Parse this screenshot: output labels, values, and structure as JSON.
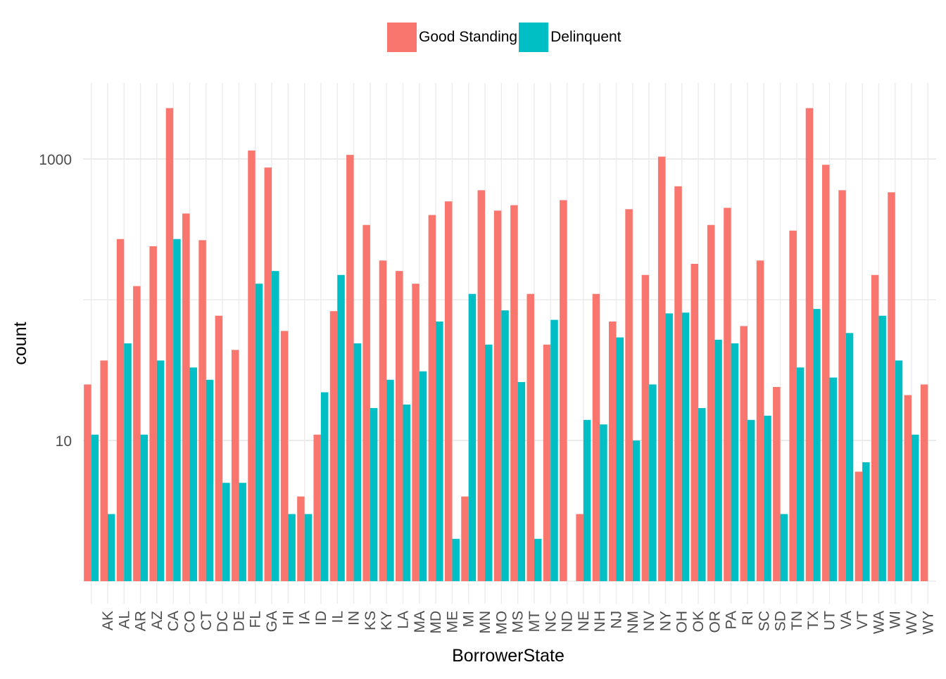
{
  "chart_data": {
    "type": "bar",
    "xlabel": "BorrowerState",
    "ylabel": "count",
    "yscale": "log10",
    "ylim": [
      1,
      3000
    ],
    "yticks": [
      10,
      1000
    ],
    "grid": true,
    "legend_position": "top",
    "categories": [
      "",
      "AK",
      "AL",
      "AR",
      "AZ",
      "CA",
      "CO",
      "CT",
      "DC",
      "DE",
      "FL",
      "GA",
      "HI",
      "IA",
      "ID",
      "IL",
      "IN",
      "KS",
      "KY",
      "LA",
      "MA",
      "MD",
      "ME",
      "MI",
      "MN",
      "MO",
      "MS",
      "MT",
      "NC",
      "ND",
      "NE",
      "NH",
      "NJ",
      "NM",
      "NV",
      "NY",
      "OH",
      "OK",
      "OR",
      "PA",
      "RI",
      "SC",
      "SD",
      "TN",
      "TX",
      "UT",
      "VA",
      "VT",
      "WA",
      "WI",
      "WV",
      "WY"
    ],
    "tick_labels": [
      "AK",
      "AL",
      "AR",
      "AZ",
      "CA",
      "CO",
      "CT",
      "DC",
      "DE",
      "FL",
      "GA",
      "HI",
      "IA",
      "ID",
      "IL",
      "IN",
      "KS",
      "KY",
      "LA",
      "MA",
      "MD",
      "ME",
      "MI",
      "MN",
      "MO",
      "MS",
      "MT",
      "NC",
      "ND",
      "NE",
      "NH",
      "NJ",
      "NM",
      "NV",
      "NY",
      "OH",
      "OK",
      "OR",
      "PA",
      "RI",
      "SC",
      "SD",
      "TN",
      "TX",
      "UT",
      "VA",
      "VT",
      "WA",
      "WI",
      "WV",
      "WY"
    ],
    "series": [
      {
        "name": "Good Standing",
        "color": "#F8766D",
        "values": [
          25,
          37,
          270,
          125,
          240,
          2300,
          410,
          265,
          77,
          44,
          1150,
          870,
          60,
          4,
          11,
          83,
          1070,
          340,
          190,
          160,
          130,
          400,
          500,
          4,
          600,
          430,
          470,
          110,
          48,
          510,
          3,
          110,
          70,
          440,
          150,
          1040,
          640,
          180,
          340,
          450,
          65,
          190,
          24,
          310,
          2300,
          910,
          600,
          6,
          150,
          580,
          21,
          25
        ]
      },
      {
        "name": "Delinquent",
        "color": "#00BFC4",
        "values": [
          11,
          3,
          49,
          11,
          37,
          270,
          33,
          27,
          5,
          5,
          130,
          160,
          3,
          3,
          22,
          150,
          49,
          17,
          27,
          18,
          31,
          70,
          2,
          110,
          48,
          84,
          26,
          2,
          72,
          null,
          14,
          13,
          54,
          10,
          25,
          80,
          81,
          17,
          52,
          49,
          14,
          15,
          3,
          33,
          86,
          28,
          58,
          7,
          77,
          37,
          11,
          null
        ]
      }
    ]
  },
  "legend": {
    "items": [
      {
        "label": "Good Standing",
        "color": "#F8766D"
      },
      {
        "label": "Delinquent",
        "color": "#00BFC4"
      }
    ]
  }
}
